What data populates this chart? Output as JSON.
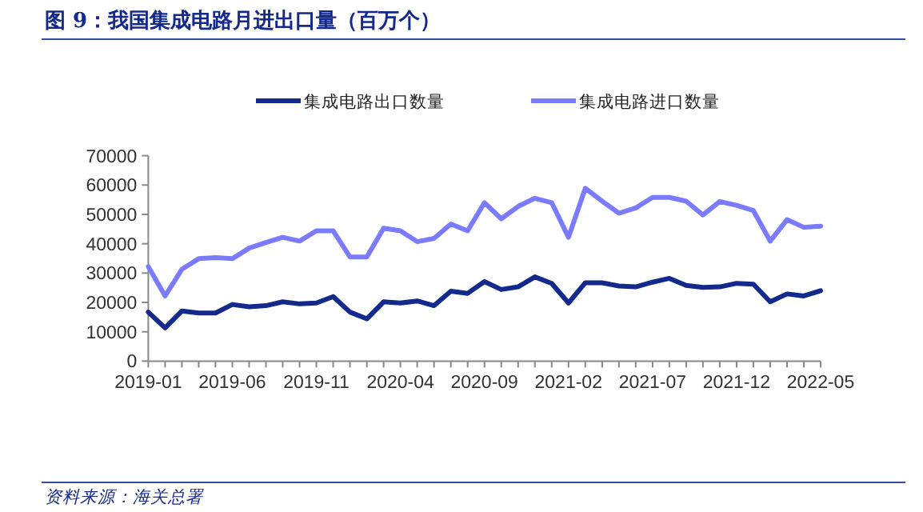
{
  "chart_data": {
    "type": "line",
    "title": "图 9：我国集成电路月进出口量（百万个）",
    "categories": [
      "2019-01",
      null,
      null,
      null,
      null,
      "2019-06",
      null,
      null,
      null,
      null,
      "2019-11",
      null,
      null,
      null,
      null,
      "2020-04",
      null,
      null,
      null,
      null,
      "2020-09",
      null,
      null,
      null,
      null,
      "2021-02",
      null,
      null,
      null,
      null,
      "2021-07",
      null,
      null,
      null,
      null,
      "2021-12",
      null,
      null,
      null,
      null,
      "2022-05"
    ],
    "series": [
      {
        "name": "集成电路出口数量",
        "color": "#13298c",
        "values": [
          16700,
          11300,
          17100,
          16400,
          16400,
          19300,
          18500,
          18900,
          20200,
          19500,
          19800,
          22000,
          16700,
          14400,
          20200,
          19800,
          20500,
          18900,
          23800,
          23100,
          27100,
          24400,
          25300,
          28700,
          26500,
          19800,
          26700,
          26700,
          25600,
          25300,
          26900,
          28200,
          25800,
          25100,
          25300,
          26500,
          26200,
          20200,
          22900,
          22200,
          24000
        ]
      },
      {
        "name": "集成电路进口数量",
        "color": "#7b7bff",
        "values": [
          32200,
          22200,
          31300,
          34900,
          35300,
          34900,
          38500,
          40400,
          42200,
          40900,
          44400,
          44400,
          35500,
          35500,
          45300,
          44400,
          40700,
          41800,
          46700,
          44400,
          54000,
          48500,
          52700,
          55500,
          54000,
          42200,
          58900,
          54500,
          50400,
          52200,
          55800,
          55800,
          54500,
          49800,
          54400,
          53100,
          51300,
          40900,
          48200,
          45600,
          46000
        ]
      }
    ],
    "ylim": [
      0,
      70000
    ],
    "yticks": [
      0,
      10000,
      20000,
      30000,
      40000,
      50000,
      60000,
      70000
    ],
    "legend": "top",
    "annotations": [
      "资料来源：海关总署"
    ]
  }
}
